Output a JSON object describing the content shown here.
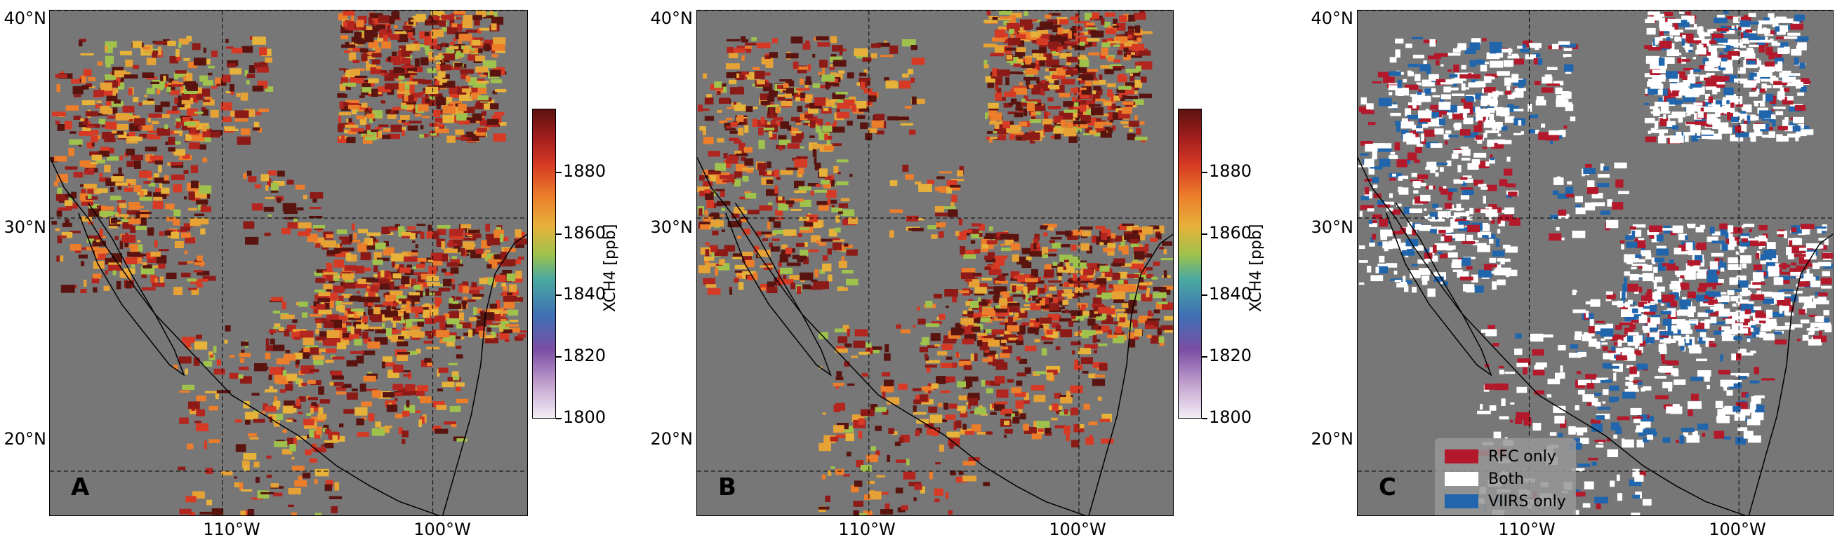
{
  "panels": [
    {
      "id": "A",
      "label": "A",
      "layer": "XCH4 field",
      "lat_ticks": [
        "40°N",
        "30°N",
        "20°N"
      ],
      "lon_ticks": [
        "110°W",
        "100°W"
      ]
    },
    {
      "id": "B",
      "label": "B",
      "layer": "XCH4 field",
      "lat_ticks": [
        "40°N",
        "30°N",
        "20°N"
      ],
      "lon_ticks": [
        "110°W",
        "100°W"
      ]
    },
    {
      "id": "C",
      "label": "C",
      "layer": "detection comparison",
      "lat_ticks": [
        "40°N",
        "30°N",
        "20°N"
      ],
      "lon_ticks": [
        "110°W",
        "100°W"
      ]
    }
  ],
  "colorbar": {
    "title": "XCH4 [ppb]",
    "ticks": [
      "1880",
      "1860",
      "1840",
      "1820",
      "1800"
    ],
    "min": 1800,
    "max": 1900,
    "colormap": "purple-blue-green-yellow-orange-red-darkred"
  },
  "legend": {
    "items": [
      {
        "label": "RFC only",
        "color": "#b3192b"
      },
      {
        "label": "Both",
        "color": "#ffffff"
      },
      {
        "label": "VIIRS only",
        "color": "#2166ac"
      }
    ]
  },
  "map": {
    "background_color": "#777777",
    "lat_range": [
      16,
      40.5
    ],
    "lon_range": [
      -119,
      -96
    ],
    "gridlines": "dashed"
  }
}
